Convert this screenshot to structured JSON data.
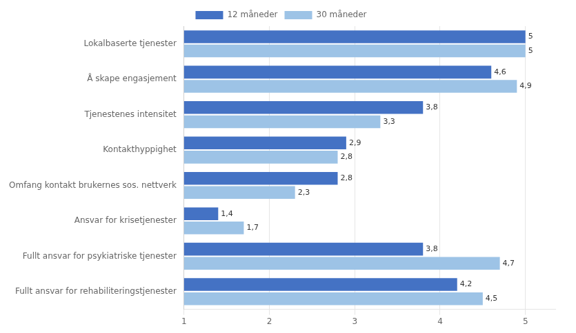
{
  "chart_data": {
    "type": "bar",
    "orientation": "horizontal",
    "categories": [
      "Fullt ansvar for rehabiliteringstjenester",
      "Fullt ansvar for psykiatriske tjenester",
      "Ansvar for krisetjenester",
      "Omfang kontakt brukernes sos. nettverk",
      "Kontakthyppighet",
      "Tjenestenes intensitet",
      "Å skape engasjement",
      "Lokalbaserte tjenester"
    ],
    "series": [
      {
        "name": "12 måneder",
        "color": "#4472C4",
        "values": [
          4.2,
          3.8,
          1.4,
          2.8,
          2.9,
          3.8,
          4.6,
          5.0
        ],
        "value_labels": [
          "4,2",
          "3,8",
          "1,4",
          "2,8",
          "2,9",
          "3,8",
          "4,6",
          "5"
        ]
      },
      {
        "name": "30 måneder",
        "color": "#9DC3E6",
        "values": [
          4.5,
          4.7,
          1.7,
          2.3,
          2.8,
          3.3,
          4.9,
          5.0
        ],
        "value_labels": [
          "4,5",
          "4,7",
          "1,7",
          "2,3",
          "2,8",
          "3,3",
          "4,9",
          "5"
        ]
      }
    ],
    "xlim": [
      1,
      5.35
    ],
    "xticks": [
      1,
      2,
      3,
      4,
      5
    ],
    "grid": true,
    "legend": "top",
    "data_labels": true
  }
}
